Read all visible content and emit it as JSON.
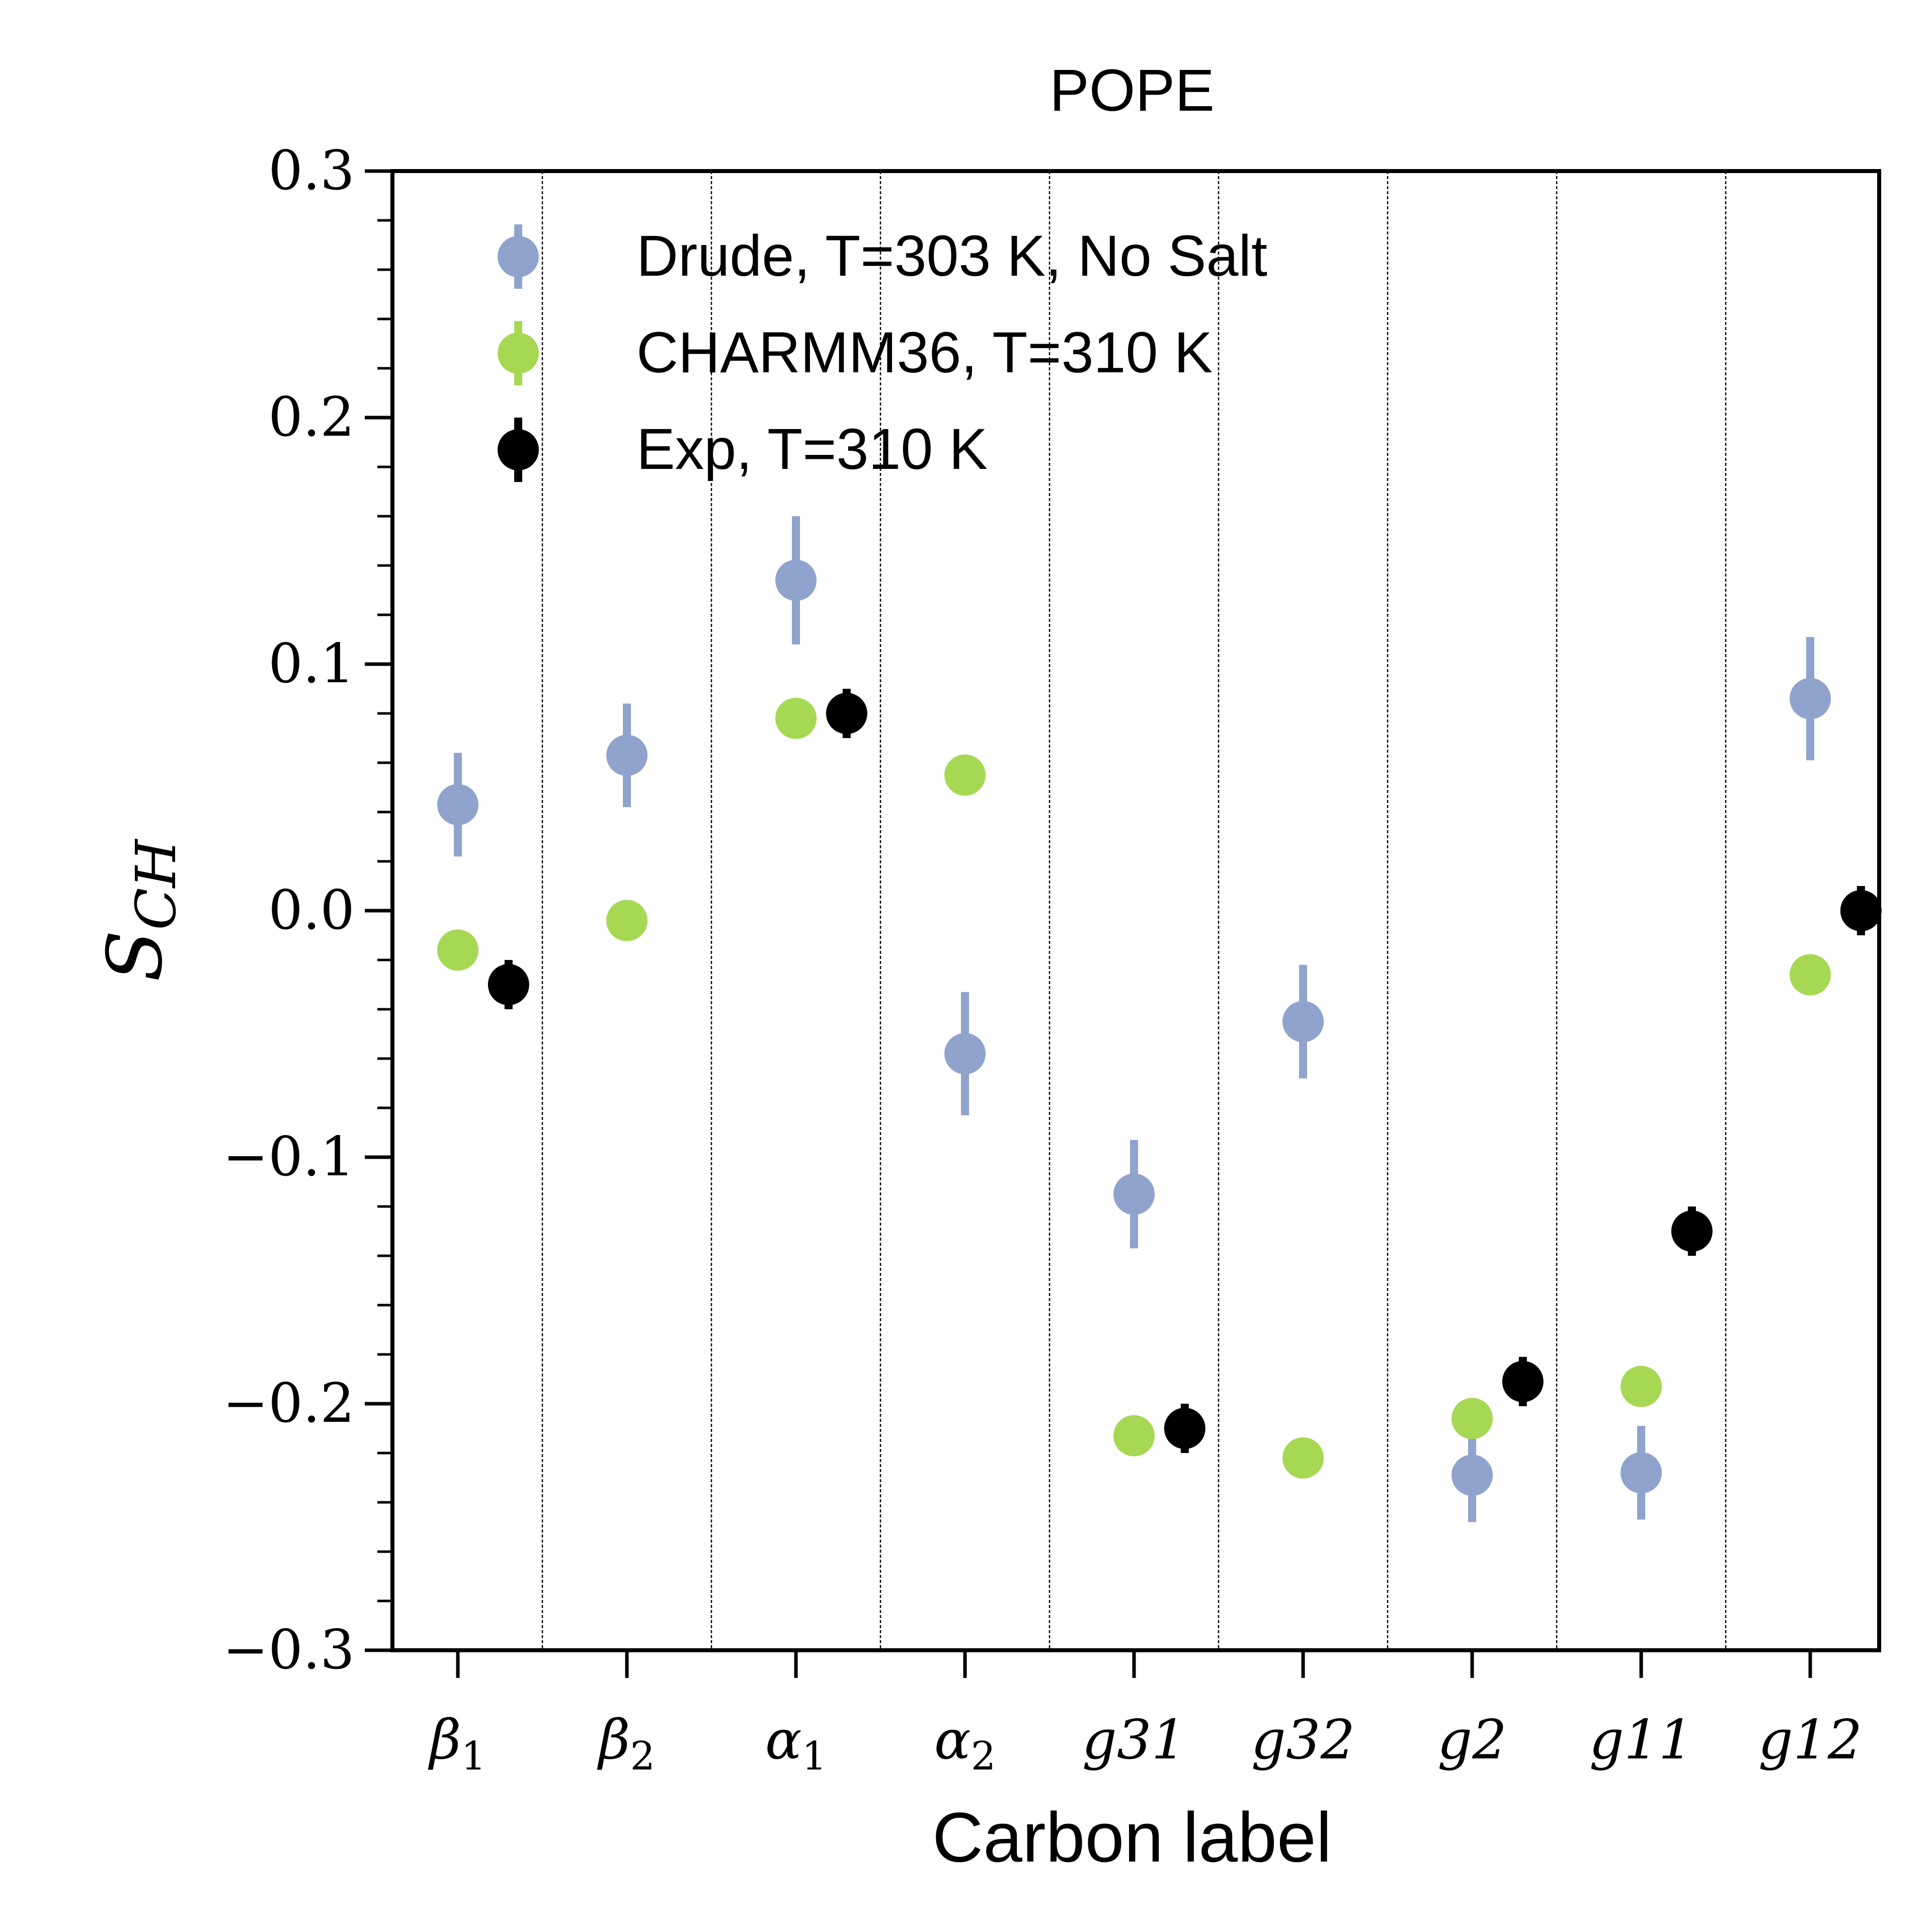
{
  "chart_data": {
    "type": "scatter",
    "title": "POPE",
    "xlabel": "Carbon label",
    "ylabel": {
      "main": "S",
      "sub": "CH"
    },
    "categories": [
      {
        "main": "β",
        "sub": "1"
      },
      {
        "main": "β",
        "sub": "2"
      },
      {
        "main": "α",
        "sub": "1"
      },
      {
        "main": "α",
        "sub": "2"
      },
      {
        "main": "g31",
        "sub": ""
      },
      {
        "main": "g32",
        "sub": ""
      },
      {
        "main": "g2",
        "sub": ""
      },
      {
        "main": "g11",
        "sub": ""
      },
      {
        "main": "g12",
        "sub": ""
      }
    ],
    "ylim": [
      -0.3,
      0.3
    ],
    "yticks": [
      {
        "value": -0.3,
        "label": "−0.3"
      },
      {
        "value": -0.2,
        "label": "−0.2"
      },
      {
        "value": -0.1,
        "label": "−0.1"
      },
      {
        "value": 0.0,
        "label": "0.0"
      },
      {
        "value": 0.1,
        "label": "0.1"
      },
      {
        "value": 0.2,
        "label": "0.2"
      },
      {
        "value": 0.3,
        "label": "0.3"
      }
    ],
    "legend_position": "top-left",
    "category_separators": true,
    "series": [
      {
        "name": "Drude, T=303 K, No Salt",
        "color": "#8fa3cc",
        "offset": 0,
        "values": [
          0.043,
          0.063,
          0.134,
          -0.058,
          -0.115,
          -0.045,
          -0.229,
          -0.228,
          0.086
        ],
        "errors": [
          0.021,
          0.021,
          0.026,
          0.025,
          0.022,
          0.023,
          0.019,
          0.019,
          0.025
        ]
      },
      {
        "name": "CHARMM36, T=310 K",
        "color": "#a6d854",
        "offset": 0,
        "values": [
          -0.016,
          -0.004,
          0.078,
          0.055,
          -0.213,
          -0.222,
          -0.206,
          -0.193,
          -0.026
        ],
        "errors": [
          0,
          0,
          0,
          0,
          0,
          0,
          0,
          0,
          0
        ]
      },
      {
        "name": "Exp, T=310 K",
        "color": "#000000",
        "offset": 0.3,
        "values": [
          -0.03,
          null,
          0.08,
          null,
          -0.21,
          null,
          -0.191,
          -0.13,
          0.0
        ],
        "errors": [
          0.01,
          null,
          0.01,
          null,
          0.01,
          null,
          0.01,
          0.01,
          0.01
        ]
      }
    ]
  }
}
